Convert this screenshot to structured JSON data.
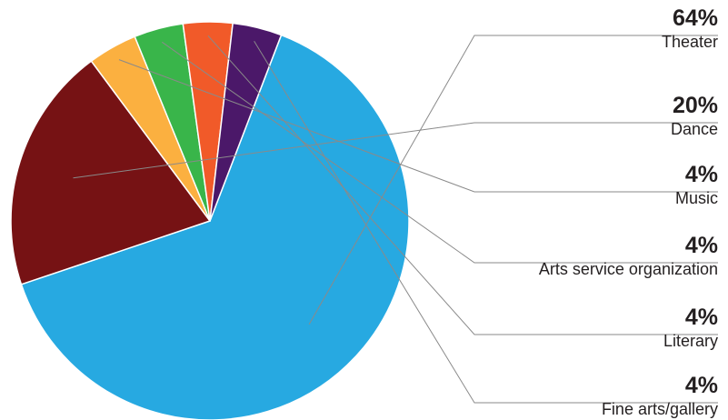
{
  "chart_data": {
    "type": "pie",
    "title": "",
    "unit": "%",
    "slices": [
      {
        "label": "Theater",
        "value": 64,
        "display": "64%",
        "color": "#27a9e1"
      },
      {
        "label": "Dance",
        "value": 20,
        "display": "20%",
        "color": "#761214"
      },
      {
        "label": "Music",
        "value": 4,
        "display": "4%",
        "color": "#fbb040"
      },
      {
        "label": "Arts service organization",
        "value": 4,
        "display": "4%",
        "color": "#39b54a"
      },
      {
        "label": "Literary",
        "value": 4,
        "display": "4%",
        "color": "#f15a29"
      },
      {
        "label": "Fine arts/gallery",
        "value": 4,
        "display": "4%",
        "color": "#4b1869"
      }
    ],
    "legend": "right, with leader lines"
  }
}
